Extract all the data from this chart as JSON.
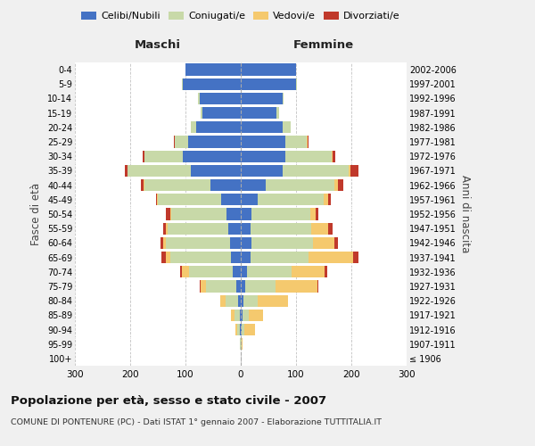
{
  "age_groups": [
    "100+",
    "95-99",
    "90-94",
    "85-89",
    "80-84",
    "75-79",
    "70-74",
    "65-69",
    "60-64",
    "55-59",
    "50-54",
    "45-49",
    "40-44",
    "35-39",
    "30-34",
    "25-29",
    "20-24",
    "15-19",
    "10-14",
    "5-9",
    "0-4"
  ],
  "birth_years": [
    "≤ 1906",
    "1907-1911",
    "1912-1916",
    "1917-1921",
    "1922-1926",
    "1927-1931",
    "1932-1936",
    "1937-1941",
    "1942-1946",
    "1947-1951",
    "1952-1956",
    "1957-1961",
    "1962-1966",
    "1967-1971",
    "1972-1976",
    "1977-1981",
    "1982-1986",
    "1987-1991",
    "1992-1996",
    "1997-2001",
    "2002-2006"
  ],
  "maschi": {
    "celibi": [
      0,
      0,
      2,
      2,
      5,
      8,
      14,
      18,
      20,
      22,
      26,
      35,
      55,
      90,
      105,
      95,
      80,
      70,
      75,
      105,
      100
    ],
    "coniugati": [
      0,
      1,
      5,
      10,
      22,
      55,
      80,
      110,
      115,
      110,
      100,
      115,
      120,
      115,
      70,
      25,
      10,
      3,
      2,
      1,
      0
    ],
    "vedovi": [
      0,
      0,
      2,
      5,
      10,
      10,
      12,
      8,
      5,
      3,
      2,
      1,
      1,
      0,
      0,
      0,
      0,
      0,
      0,
      0,
      0
    ],
    "divorziati": [
      0,
      0,
      0,
      0,
      0,
      1,
      3,
      8,
      5,
      5,
      8,
      2,
      4,
      5,
      2,
      1,
      0,
      0,
      0,
      0,
      0
    ]
  },
  "femmine": {
    "nubili": [
      0,
      0,
      2,
      3,
      5,
      8,
      12,
      18,
      20,
      18,
      20,
      30,
      45,
      75,
      80,
      80,
      75,
      65,
      75,
      100,
      100
    ],
    "coniugate": [
      0,
      1,
      5,
      12,
      25,
      55,
      80,
      105,
      110,
      110,
      105,
      120,
      125,
      120,
      85,
      40,
      15,
      4,
      2,
      1,
      0
    ],
    "vedove": [
      0,
      2,
      18,
      25,
      55,
      75,
      60,
      80,
      40,
      30,
      10,
      8,
      5,
      3,
      1,
      1,
      0,
      0,
      0,
      0,
      0
    ],
    "divorziate": [
      0,
      0,
      0,
      0,
      0,
      2,
      4,
      10,
      5,
      8,
      6,
      5,
      10,
      15,
      5,
      1,
      0,
      0,
      0,
      0,
      0
    ]
  },
  "colors": {
    "celibi": "#4472c4",
    "coniugati": "#c8d9a8",
    "vedovi": "#f5c96e",
    "divorziati": "#c0392b"
  },
  "xlim": 300,
  "title": "Popolazione per età, sesso e stato civile - 2007",
  "subtitle": "COMUNE DI PONTENURE (PC) - Dati ISTAT 1° gennaio 2007 - Elaborazione TUTTITALIA.IT",
  "ylabel_left": "Fasce di età",
  "ylabel_right": "Anni di nascita",
  "xlabel_left": "Maschi",
  "xlabel_right": "Femmine",
  "background_color": "#f0f0f0",
  "plot_background": "#ffffff"
}
